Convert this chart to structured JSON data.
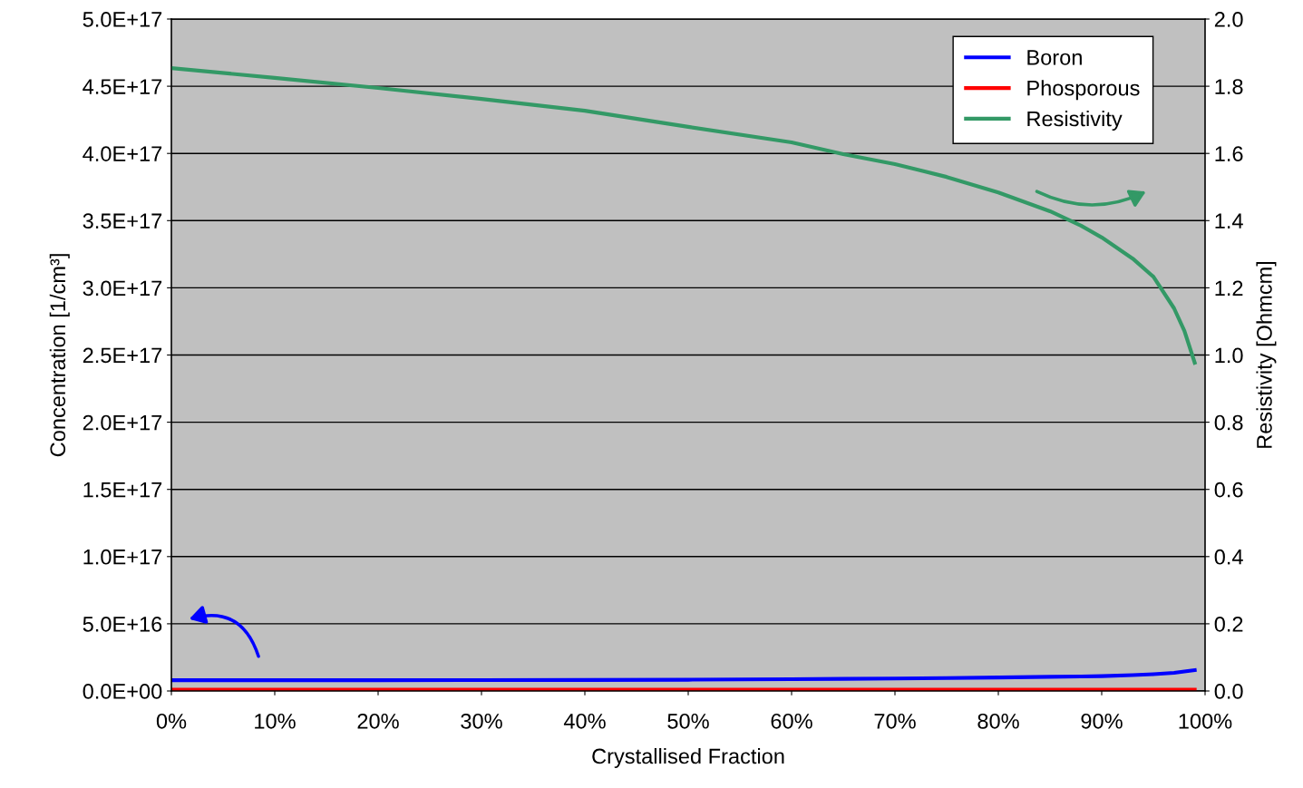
{
  "chart_data": {
    "type": "line",
    "xlabel": "Crystallised Fraction",
    "ylabel": "Concentration [1/cm³]",
    "y2label": "Resistivity [Ohmcm]",
    "x": [
      0,
      10,
      20,
      30,
      40,
      50,
      60,
      65,
      70,
      75,
      80,
      85,
      88,
      90,
      93,
      95,
      97,
      98,
      99
    ],
    "series": [
      {
        "name": "Boron",
        "color": "#0000ff",
        "values": [
          8000000000000000.0,
          8000000000000000.0,
          8000000000000000.0,
          8100000000000000.0,
          8200000000000000.0,
          8400000000000000.0,
          8800000000000000.0,
          9000000000000000.0,
          9300000000000000.0,
          9600000000000000.0,
          1e+16,
          1.05e+16,
          1.08e+16,
          1.1e+16,
          1.18e+16,
          1.25e+16,
          1.35e+16,
          1.45e+16,
          1.55e+16
        ]
      },
      {
        "name": "Phosporous",
        "color": "#ff0000",
        "values": [
          1000000000000000.0,
          1000000000000000.0,
          1000000000000000.0,
          1000000000000000.0,
          1000000000000000.0,
          1000000000000000.0,
          1000000000000000.0,
          1000000000000000.0,
          1000000000000000.0,
          1000000000000000.0,
          1000000000000000.0,
          1000000000000000.0,
          1000000000000000.0,
          1000000000000000.0,
          1000000000000000.0,
          1000000000000000.0,
          1000000000000000.0,
          1000000000000000.0,
          1000000000000000.0
        ]
      },
      {
        "name": "Resistivity",
        "color": "#339966",
        "axis": "y2",
        "values": [
          1.854,
          1.825,
          1.795,
          1.762,
          1.727,
          1.679,
          1.633,
          1.598,
          1.568,
          1.53,
          1.484,
          1.428,
          1.385,
          1.35,
          1.287,
          1.233,
          1.139,
          1.072,
          0.977
        ]
      }
    ],
    "xlim": [
      0,
      100
    ],
    "xticks": [
      {
        "value": 0,
        "label": "0%"
      },
      {
        "value": 10,
        "label": "10%"
      },
      {
        "value": 20,
        "label": "20%"
      },
      {
        "value": 30,
        "label": "30%"
      },
      {
        "value": 40,
        "label": "40%"
      },
      {
        "value": 50,
        "label": "50%"
      },
      {
        "value": 60,
        "label": "60%"
      },
      {
        "value": 70,
        "label": "70%"
      },
      {
        "value": 80,
        "label": "80%"
      },
      {
        "value": 90,
        "label": "90%"
      },
      {
        "value": 100,
        "label": "100%"
      }
    ],
    "ylim": [
      0,
      5e+17
    ],
    "yticks": [
      {
        "value": 0,
        "label": "0.0E+00"
      },
      {
        "value": 5e+16,
        "label": "5.0E+16"
      },
      {
        "value": 1e+17,
        "label": "1.0E+17"
      },
      {
        "value": 1.5e+17,
        "label": "1.5E+17"
      },
      {
        "value": 2e+17,
        "label": "2.0E+17"
      },
      {
        "value": 2.5e+17,
        "label": "2.5E+17"
      },
      {
        "value": 3e+17,
        "label": "3.0E+17"
      },
      {
        "value": 3.5e+17,
        "label": "3.5E+17"
      },
      {
        "value": 4e+17,
        "label": "4.0E+17"
      },
      {
        "value": 4.5e+17,
        "label": "4.5E+17"
      },
      {
        "value": 5e+17,
        "label": "5.0E+17"
      }
    ],
    "y2lim": [
      0,
      2.0
    ],
    "y2ticks": [
      {
        "value": 0,
        "label": "0.0"
      },
      {
        "value": 0.2,
        "label": "0.2"
      },
      {
        "value": 0.4,
        "label": "0.4"
      },
      {
        "value": 0.6,
        "label": "0.6"
      },
      {
        "value": 0.8,
        "label": "0.8"
      },
      {
        "value": 1.0,
        "label": "1.0"
      },
      {
        "value": 1.2,
        "label": "1.2"
      },
      {
        "value": 1.4,
        "label": "1.4"
      },
      {
        "value": 1.6,
        "label": "1.6"
      },
      {
        "value": 1.8,
        "label": "1.8"
      },
      {
        "value": 2.0,
        "label": "2.0"
      }
    ],
    "grid": "y",
    "legend": "top right",
    "marker": "none",
    "line_style": "solid"
  }
}
